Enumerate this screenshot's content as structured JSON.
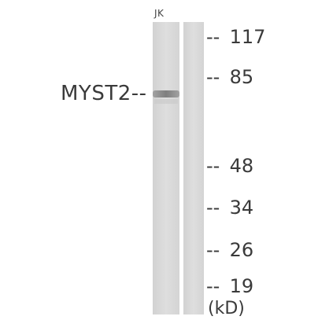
{
  "lane_label": "JK",
  "band_label": "MYST2--",
  "markers": [
    {
      "dash": "--",
      "value": "117"
    },
    {
      "dash": "--",
      "value": "85"
    },
    {
      "dash": "--",
      "value": "48"
    },
    {
      "dash": "--",
      "value": "34"
    },
    {
      "dash": "--",
      "value": "26"
    },
    {
      "dash": "--",
      "value": "19"
    }
  ],
  "unit_label": "(kD)"
}
